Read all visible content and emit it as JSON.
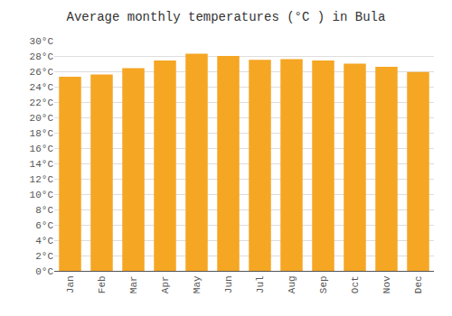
{
  "chart_data": {
    "type": "bar",
    "title": "Average monthly temperatures (°C ) in Bula",
    "categories": [
      "Jan",
      "Feb",
      "Mar",
      "Apr",
      "May",
      "Jun",
      "Jul",
      "Aug",
      "Sep",
      "Oct",
      "Nov",
      "Dec"
    ],
    "values": [
      25.3,
      25.6,
      26.4,
      27.4,
      28.3,
      28.0,
      27.5,
      27.6,
      27.4,
      27.0,
      26.6,
      25.9
    ],
    "color": "#F5A623",
    "ylim": [
      0,
      30
    ],
    "yticks": [
      {
        "value": 0,
        "label": "0°C"
      },
      {
        "value": 2,
        "label": "2°C"
      },
      {
        "value": 4,
        "label": "4°C"
      },
      {
        "value": 6,
        "label": "6°C"
      },
      {
        "value": 8,
        "label": "8°C"
      },
      {
        "value": 10,
        "label": "10°C"
      },
      {
        "value": 12,
        "label": "12°C"
      },
      {
        "value": 14,
        "label": "14°C"
      },
      {
        "value": 16,
        "label": "16°C"
      },
      {
        "value": 18,
        "label": "18°C"
      },
      {
        "value": 20,
        "label": "20°C"
      },
      {
        "value": 22,
        "label": "22°C"
      },
      {
        "value": 24,
        "label": "24°C"
      },
      {
        "value": 26,
        "label": "26°C"
      },
      {
        "value": 28,
        "label": "28°C"
      },
      {
        "value": 30,
        "label": "30°C"
      }
    ],
    "grid": true
  }
}
